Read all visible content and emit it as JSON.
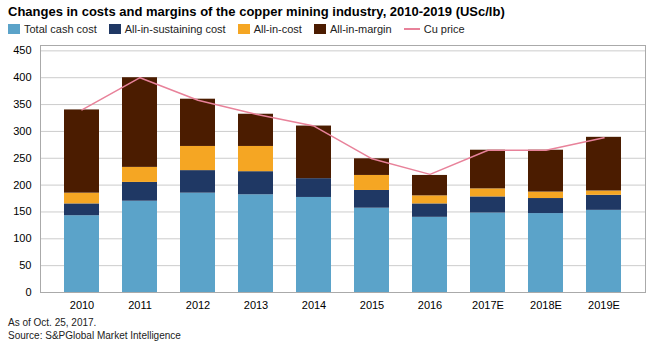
{
  "chart_data": {
    "type": "bar",
    "stacked": true,
    "title": "Changes in costs and margins of the copper mining industry, 2010-2019 (USc/lb)",
    "categories": [
      "2010",
      "2011",
      "2012",
      "2013",
      "2014",
      "2015",
      "2016",
      "2017E",
      "2018E",
      "2019E"
    ],
    "series": [
      {
        "name": "Total cash cost",
        "type": "bar",
        "color": "#5BA3C9",
        "values": [
          143,
          170,
          185,
          182,
          177,
          157,
          140,
          148,
          147,
          153
        ]
      },
      {
        "name": "All-in-sustaining cost",
        "type": "bar",
        "color": "#1F3864",
        "values": [
          22,
          35,
          42,
          43,
          35,
          33,
          25,
          30,
          28,
          28
        ]
      },
      {
        "name": "All-in-cost",
        "type": "bar",
        "color": "#F5A623",
        "values": [
          20,
          28,
          45,
          47,
          0,
          28,
          15,
          15,
          12,
          8
        ]
      },
      {
        "name": "All-in-margin",
        "type": "bar",
        "color": "#4B1C00",
        "values": [
          155,
          167,
          88,
          60,
          98,
          31,
          38,
          72,
          78,
          100
        ]
      },
      {
        "name": "Cu price",
        "type": "line",
        "color": "#E8829A",
        "values": [
          340,
          400,
          358,
          332,
          310,
          249,
          220,
          265,
          265,
          288
        ]
      }
    ],
    "ylim": [
      0,
      460
    ],
    "yticks": [
      0,
      50,
      100,
      150,
      200,
      250,
      300,
      350,
      400,
      450
    ],
    "grid": true,
    "legend": "top",
    "annotations": [
      "As of Oct. 25, 2017.",
      "Source: S&PGlobal Market Intelligence"
    ]
  }
}
